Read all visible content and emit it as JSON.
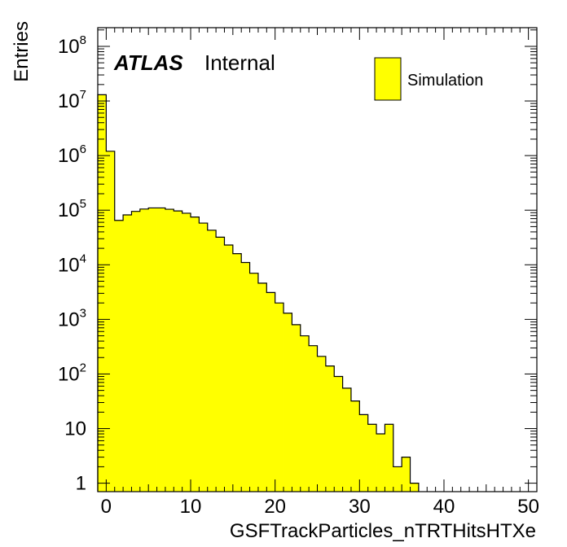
{
  "chart_data": {
    "type": "bar",
    "subtype": "histogram",
    "x_bin_edges_start": -1,
    "bin_width": 1,
    "values": [
      13000000.0,
      1200000.0,
      65000,
      82000,
      95000,
      105000,
      110000,
      110000,
      104000,
      97000,
      88000,
      75000,
      58000,
      43000,
      32000,
      23000,
      16000,
      11000,
      7000,
      4600,
      3100,
      2000,
      1300,
      800,
      500,
      330,
      210,
      140,
      90,
      55,
      32,
      18,
      12,
      8,
      12,
      2,
      3,
      1,
      0,
      0,
      0,
      0,
      0,
      0,
      0,
      0,
      0,
      0,
      0,
      0,
      0,
      0
    ],
    "xlim": [
      -1,
      51
    ],
    "ylim": [
      0.7,
      220000000.0
    ],
    "y_scale": "log",
    "xlabel": "GSFTrackParticles_nTRTHitsHTXe",
    "ylabel": "Entries",
    "x_ticks": [
      0,
      10,
      20,
      30,
      40,
      50
    ],
    "y_ticks": [
      {
        "value": 1,
        "base": "1",
        "exp": ""
      },
      {
        "value": 10,
        "base": "10",
        "exp": ""
      },
      {
        "value": 100,
        "base": "10",
        "exp": "2"
      },
      {
        "value": 1000,
        "base": "10",
        "exp": "3"
      },
      {
        "value": 10000,
        "base": "10",
        "exp": "4"
      },
      {
        "value": 100000,
        "base": "10",
        "exp": "5"
      },
      {
        "value": 1000000,
        "base": "10",
        "exp": "6"
      },
      {
        "value": 10000000,
        "base": "10",
        "exp": "7"
      },
      {
        "value": 100000000,
        "base": "10",
        "exp": "8"
      }
    ],
    "series": [
      {
        "name": "Simulation"
      }
    ],
    "fill_color": "#ffff00",
    "line_color": "#000000",
    "legend_position": "top-right",
    "grid": false
  },
  "label": {
    "experiment": "ATLAS",
    "status": "Internal"
  }
}
